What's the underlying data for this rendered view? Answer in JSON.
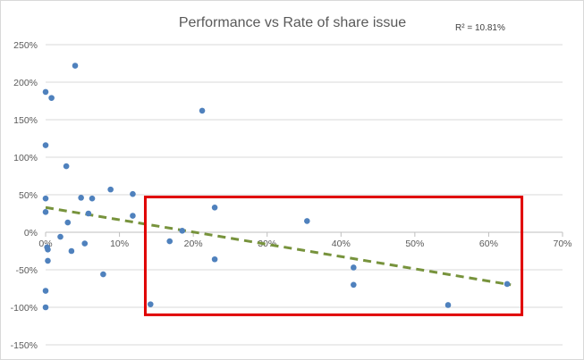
{
  "chart_data": {
    "type": "scatter",
    "title": "Performance vs Rate of share issue",
    "annotation": "R² = 10.81%",
    "xlabel": "",
    "ylabel": "",
    "xlim": [
      0,
      0.7
    ],
    "ylim": [
      -1.5,
      2.5
    ],
    "x_ticks": [
      0,
      0.1,
      0.2,
      0.3,
      0.4,
      0.5,
      0.6,
      0.7
    ],
    "x_tick_labels": [
      "0%",
      "10%",
      "20%",
      "30%",
      "40%",
      "50%",
      "60%",
      "70%"
    ],
    "y_ticks": [
      2.5,
      2.0,
      1.5,
      1.0,
      0.5,
      0.0,
      -0.5,
      -1.0,
      -1.5
    ],
    "y_tick_labels": [
      "250%",
      "200%",
      "150%",
      "100%",
      "50%",
      "0%",
      "-50%",
      "-100%",
      "-150%"
    ],
    "grid": "horizontal",
    "marker_color": "#4f81bd",
    "trendline": {
      "style": "dashed",
      "color": "#77933c",
      "x": [
        0,
        0.63
      ],
      "y": [
        0.33,
        -0.7
      ]
    },
    "highlight_box_color": "#e00000",
    "points": [
      {
        "x": 0.0,
        "y": 1.87
      },
      {
        "x": 0.008,
        "y": 1.79
      },
      {
        "x": 0.0,
        "y": 1.16
      },
      {
        "x": 0.0,
        "y": 0.45
      },
      {
        "x": 0.0,
        "y": 0.27
      },
      {
        "x": 0.002,
        "y": -0.2
      },
      {
        "x": 0.003,
        "y": -0.23
      },
      {
        "x": 0.003,
        "y": -0.38
      },
      {
        "x": 0.0,
        "y": -0.78
      },
      {
        "x": 0.0,
        "y": -1.0
      },
      {
        "x": 0.02,
        "y": -0.06
      },
      {
        "x": 0.028,
        "y": 0.88
      },
      {
        "x": 0.03,
        "y": 0.13
      },
      {
        "x": 0.035,
        "y": -0.25
      },
      {
        "x": 0.04,
        "y": 2.22
      },
      {
        "x": 0.048,
        "y": 0.46
      },
      {
        "x": 0.053,
        "y": -0.15
      },
      {
        "x": 0.058,
        "y": 0.25
      },
      {
        "x": 0.063,
        "y": 0.45
      },
      {
        "x": 0.078,
        "y": -0.56
      },
      {
        "x": 0.088,
        "y": 0.57
      },
      {
        "x": 0.118,
        "y": 0.51
      },
      {
        "x": 0.118,
        "y": 0.22
      },
      {
        "x": 0.142,
        "y": -0.96
      },
      {
        "x": 0.168,
        "y": -0.12
      },
      {
        "x": 0.185,
        "y": 0.02
      },
      {
        "x": 0.212,
        "y": 1.62
      },
      {
        "x": 0.229,
        "y": 0.33
      },
      {
        "x": 0.229,
        "y": -0.36
      },
      {
        "x": 0.354,
        "y": 0.15
      },
      {
        "x": 0.417,
        "y": -0.47
      },
      {
        "x": 0.417,
        "y": -0.7
      },
      {
        "x": 0.545,
        "y": -0.97
      },
      {
        "x": 0.625,
        "y": -0.69
      }
    ]
  }
}
